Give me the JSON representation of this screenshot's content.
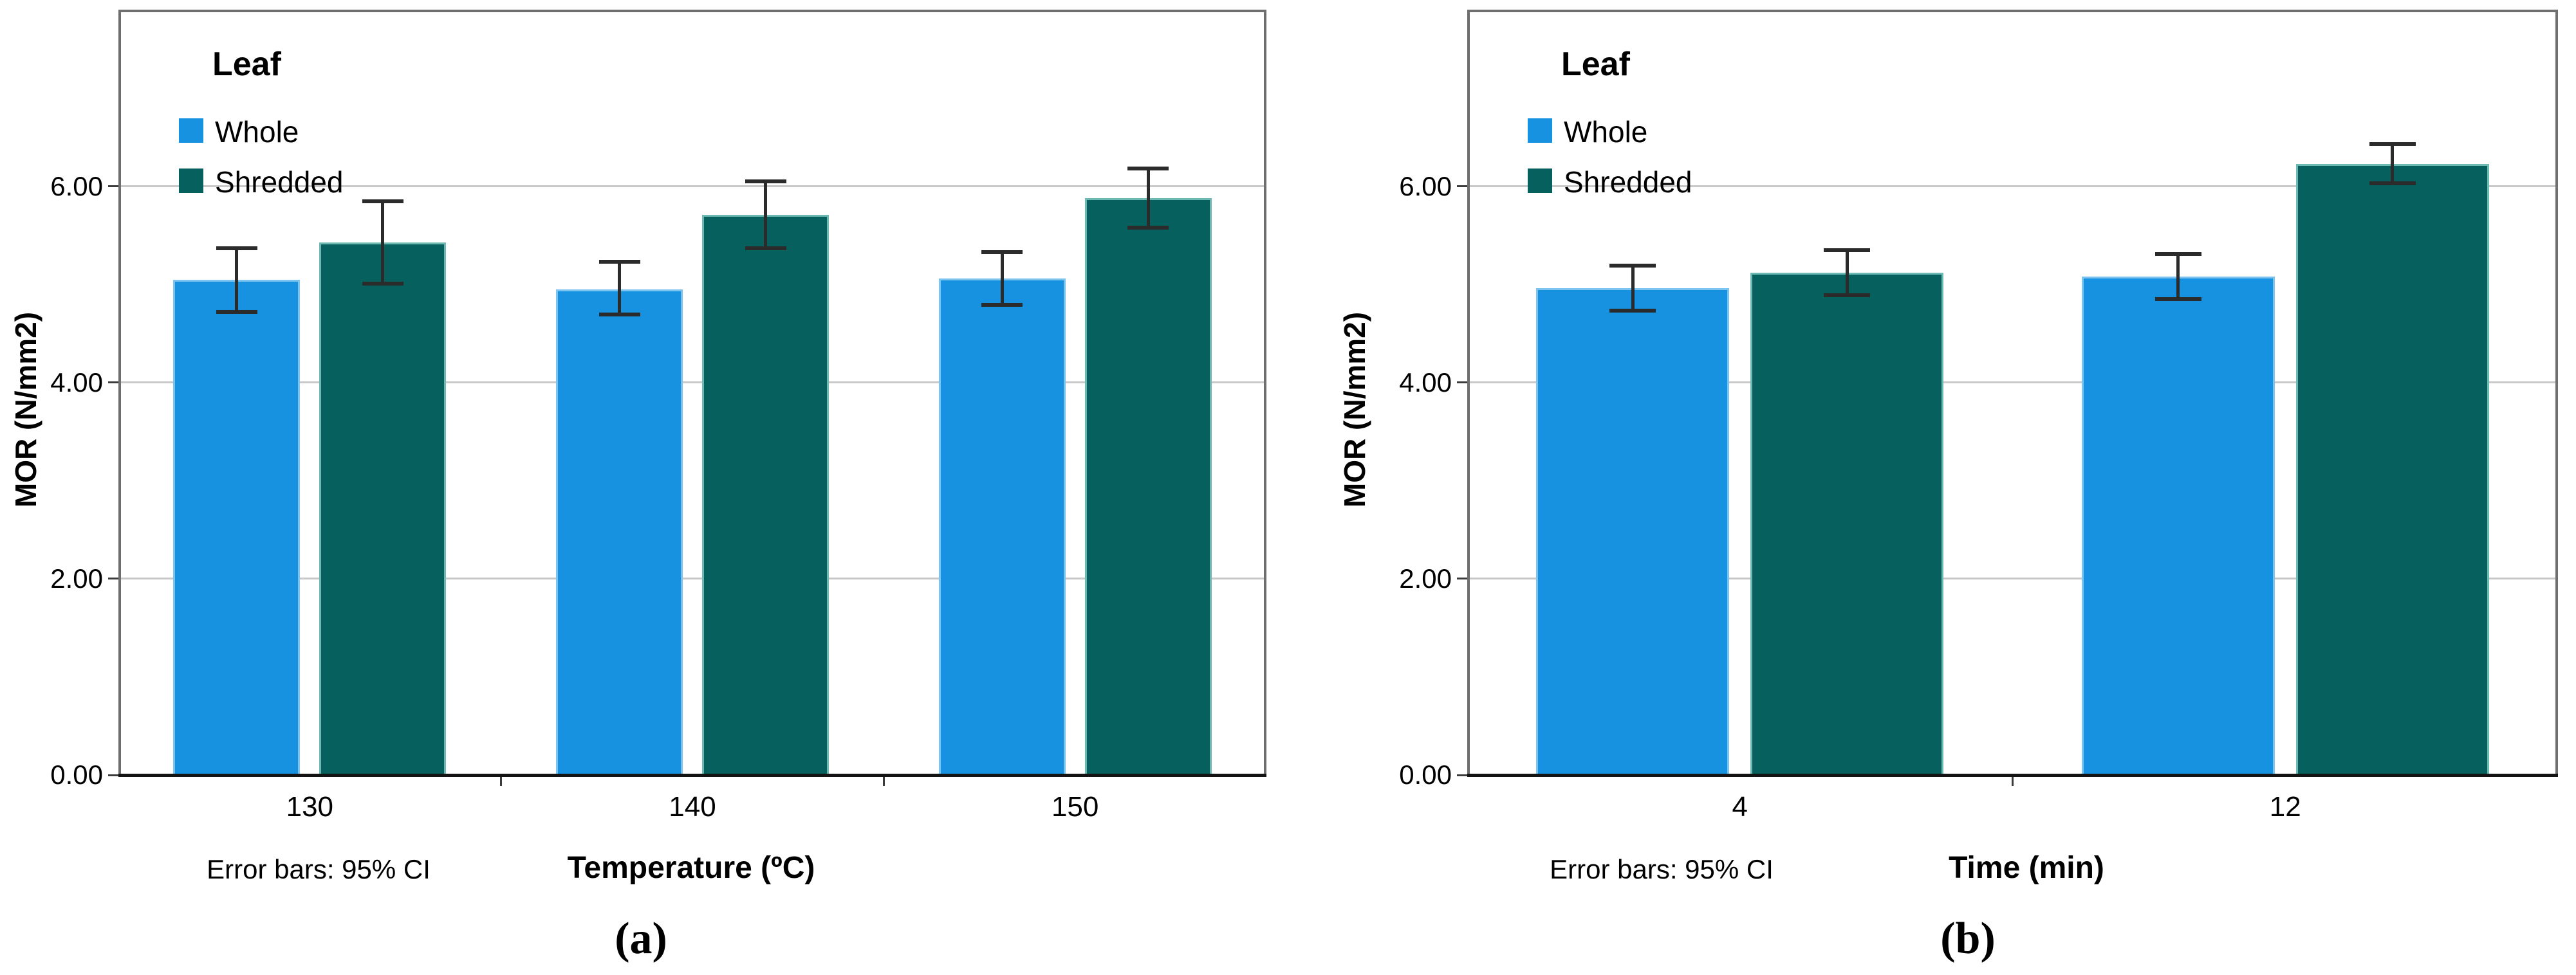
{
  "figure": {
    "description": "Two clustered bar charts comparing MOR of boards made from Whole vs Shredded leaf",
    "panel_labels": [
      "(a)",
      "(b)"
    ]
  },
  "colors": {
    "whole": "#1792E0",
    "whole_edge": "#7CC3EF",
    "shredded": "#06605E",
    "shredded_edge": "#6FB9B4",
    "error_bar": "#2B2B2B",
    "gridline": "#C8C8C8",
    "frame": "#6F6F6F",
    "baseline": "#141414",
    "text": "#000000"
  },
  "chart_data": [
    {
      "type": "bar",
      "panel_label": "(a)",
      "legend": {
        "title": "Leaf",
        "position": "top-left-inside",
        "entries": [
          {
            "label": "Whole",
            "color": "#1792E0"
          },
          {
            "label": "Shredded",
            "color": "#06605E"
          }
        ]
      },
      "categories": [
        "130",
        "140",
        "150"
      ],
      "xlabel": "Temperature (ºC)",
      "ylabel": "MOR (N/mm2)",
      "footnote": "Error bars: 95% CI",
      "ytick_values": [
        0,
        2,
        4,
        6
      ],
      "ytick_labels": [
        "0.00",
        "2.00",
        "4.00",
        "6.00"
      ],
      "ylim": [
        0,
        7.8
      ],
      "grid": "horizontal-major",
      "series": [
        {
          "name": "Whole",
          "values": [
            5.05,
            4.95,
            5.06
          ],
          "ci_low": [
            4.72,
            4.69,
            4.79
          ],
          "ci_high": [
            5.37,
            5.23,
            5.33
          ]
        },
        {
          "name": "Shredded",
          "values": [
            5.43,
            5.71,
            5.88
          ],
          "ci_low": [
            5.01,
            5.37,
            5.58
          ],
          "ci_high": [
            5.85,
            6.05,
            6.18
          ]
        }
      ]
    },
    {
      "type": "bar",
      "panel_label": "(b)",
      "legend": {
        "title": "Leaf",
        "position": "top-left-inside",
        "entries": [
          {
            "label": "Whole",
            "color": "#1792E0"
          },
          {
            "label": "Shredded",
            "color": "#06605E"
          }
        ]
      },
      "categories": [
        "4",
        "12"
      ],
      "xlabel": "Time (min)",
      "ylabel": "MOR (N/mm2)",
      "footnote": "Error bars: 95% CI",
      "ytick_values": [
        0,
        2,
        4,
        6
      ],
      "ytick_labels": [
        "0.00",
        "2.00",
        "4.00",
        "6.00"
      ],
      "ylim": [
        0,
        7.8
      ],
      "grid": "horizontal-major",
      "series": [
        {
          "name": "Whole",
          "values": [
            4.96,
            5.08
          ],
          "ci_low": [
            4.73,
            4.85
          ],
          "ci_high": [
            5.19,
            5.31
          ]
        },
        {
          "name": "Shredded",
          "values": [
            5.12,
            6.23
          ],
          "ci_low": [
            4.89,
            6.03
          ],
          "ci_high": [
            5.35,
            6.43
          ]
        }
      ]
    }
  ]
}
